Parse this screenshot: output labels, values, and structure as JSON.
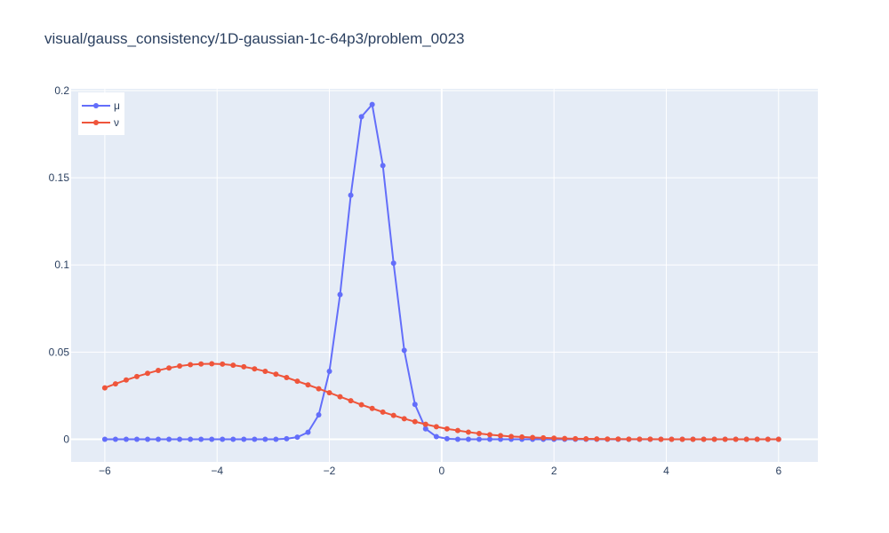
{
  "chart_data": {
    "type": "line",
    "title": "visual/gauss_consistency/1D-gaussian-1c-64p3/problem_0023",
    "xlabel": "",
    "ylabel": "",
    "xlim": [
      -6.6,
      6.7
    ],
    "ylim": [
      -0.013,
      0.201
    ],
    "x_ticks": [
      -6,
      -4,
      -2,
      0,
      2,
      4,
      6
    ],
    "x_tick_labels": [
      "−6",
      "−4",
      "−2",
      "0",
      "2",
      "4",
      "6"
    ],
    "y_ticks": [
      0,
      0.05,
      0.1,
      0.15,
      0.2
    ],
    "y_tick_labels": [
      "0",
      "0.05",
      "0.1",
      "0.15",
      "0.2"
    ],
    "grid": true,
    "legend_position": "top-left",
    "x": [
      -6.0,
      -5.81,
      -5.619,
      -5.429,
      -5.238,
      -5.048,
      -4.857,
      -4.667,
      -4.476,
      -4.286,
      -4.095,
      -3.905,
      -3.714,
      -3.524,
      -3.333,
      -3.143,
      -2.952,
      -2.762,
      -2.571,
      -2.381,
      -2.19,
      -2.0,
      -1.81,
      -1.619,
      -1.429,
      -1.238,
      -1.048,
      -0.857,
      -0.667,
      -0.476,
      -0.286,
      -0.095,
      0.095,
      0.286,
      0.476,
      0.667,
      0.857,
      1.048,
      1.238,
      1.429,
      1.619,
      1.81,
      2.0,
      2.19,
      2.381,
      2.571,
      2.762,
      2.952,
      3.143,
      3.333,
      3.524,
      3.714,
      3.905,
      4.095,
      4.286,
      4.476,
      4.667,
      4.857,
      5.048,
      5.238,
      5.429,
      5.619,
      5.81,
      6.0
    ],
    "series": [
      {
        "name": "μ",
        "color": "#636efa",
        "values": [
          0,
          0,
          0,
          0,
          0,
          0,
          0,
          0,
          0,
          0,
          0,
          0,
          0,
          0,
          0,
          0,
          0,
          0.0003,
          0.0012,
          0.004,
          0.014,
          0.039,
          0.083,
          0.14,
          0.185,
          0.192,
          0.157,
          0.101,
          0.051,
          0.02,
          0.006,
          0.0015,
          0.0003,
          0,
          0,
          0,
          0,
          0,
          0,
          0,
          0,
          0,
          0,
          0,
          0,
          0,
          0,
          0,
          0,
          0,
          0,
          0,
          0,
          0,
          0,
          0,
          0,
          0,
          0,
          0,
          0,
          0,
          0,
          0
        ]
      },
      {
        "name": "ν",
        "color": "#ef553b",
        "values": [
          0.0295,
          0.0318,
          0.034,
          0.036,
          0.0378,
          0.0395,
          0.0409,
          0.042,
          0.0428,
          0.0432,
          0.0433,
          0.0431,
          0.0425,
          0.0416,
          0.0404,
          0.039,
          0.0373,
          0.0354,
          0.0333,
          0.0312,
          0.029,
          0.0267,
          0.0244,
          0.0221,
          0.0198,
          0.0177,
          0.0156,
          0.0137,
          0.0118,
          0.0101,
          0.0086,
          0.0072,
          0.006,
          0.005,
          0.0041,
          0.0033,
          0.0026,
          0.0021,
          0.0016,
          0.0013,
          0.001,
          0.0008,
          0.0006,
          0.00045,
          0.00034,
          0.00025,
          0.00018,
          0.00013,
          0.0001,
          7e-05,
          5e-05,
          3e-05,
          2e-05,
          1e-05,
          1e-05,
          0,
          0,
          0,
          0,
          0,
          0,
          0,
          0,
          0
        ]
      }
    ]
  }
}
